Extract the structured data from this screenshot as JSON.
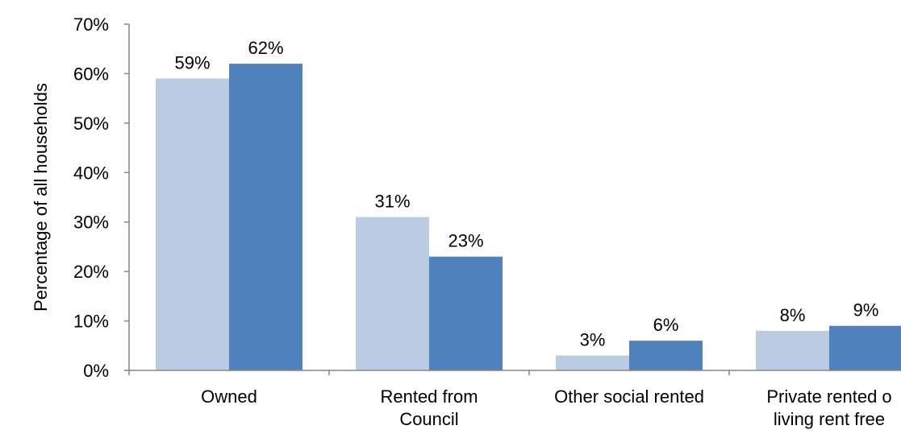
{
  "chart_data": {
    "type": "bar",
    "title": "",
    "xlabel": "",
    "ylabel": "Percentage of all households",
    "ylim": [
      0,
      70
    ],
    "yticks": [
      "0%",
      "10%",
      "20%",
      "30%",
      "40%",
      "50%",
      "60%",
      "70%"
    ],
    "ytick_values": [
      0,
      10,
      20,
      30,
      40,
      50,
      60,
      70
    ],
    "grid": false,
    "legend": "none",
    "categories": [
      [
        "Owned"
      ],
      [
        "Rented from",
        "Council"
      ],
      [
        "Other social rented"
      ],
      [
        "Private rented o",
        "living rent free"
      ]
    ],
    "series": [
      {
        "color": "#b9cce4",
        "values": [
          59,
          31,
          3,
          8
        ],
        "labels": [
          "59%",
          "31%",
          "3%",
          "8%"
        ]
      },
      {
        "color": "#4f81bd",
        "values": [
          62,
          23,
          6,
          9
        ],
        "labels": [
          "62%",
          "23%",
          "6%",
          "9%"
        ]
      }
    ],
    "axis_color": "#868686"
  }
}
